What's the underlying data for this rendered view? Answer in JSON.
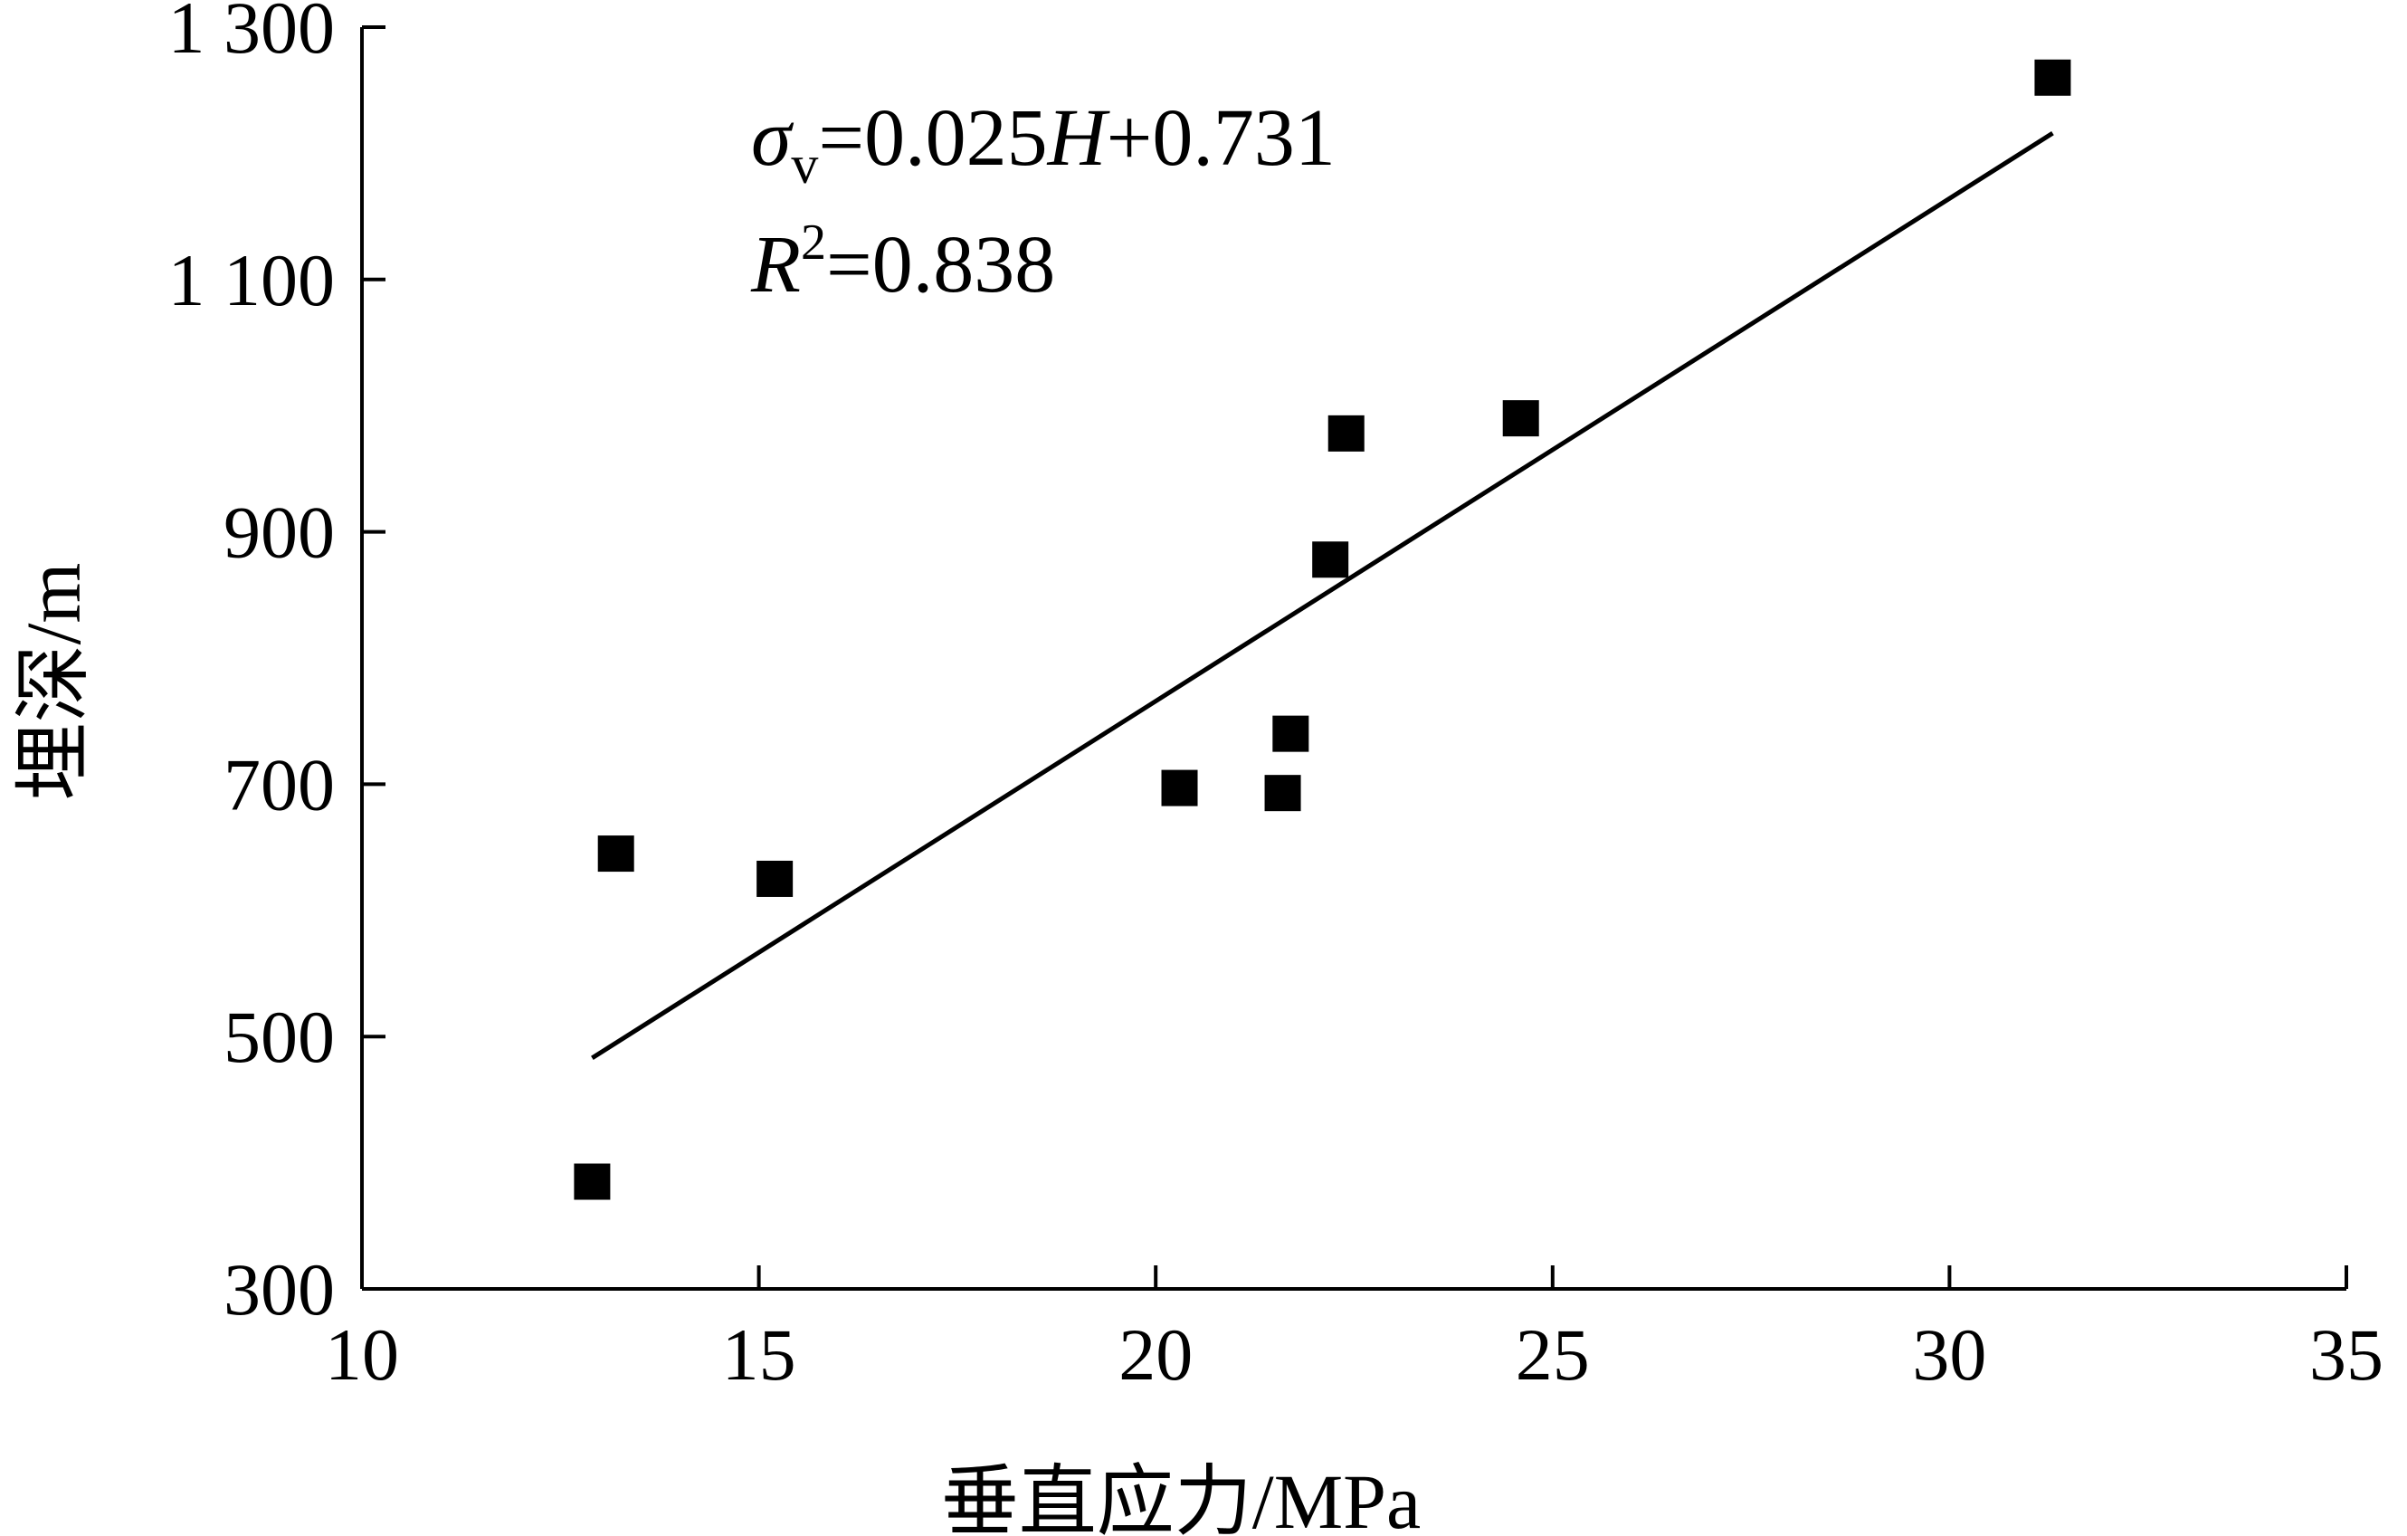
{
  "chart_data": {
    "type": "scatter",
    "xlabel": "垂直应力/MPa",
    "ylabel": "埋深/m",
    "xlim": [
      10,
      35
    ],
    "ylim": [
      300,
      1300
    ],
    "x_ticks": [
      10,
      15,
      20,
      25,
      30,
      35
    ],
    "x_tick_labels": [
      "10",
      "15",
      "20",
      "25",
      "30",
      "35"
    ],
    "y_ticks": [
      300,
      500,
      700,
      900,
      1100,
      1300
    ],
    "y_tick_labels": [
      "300",
      "500",
      "700",
      "900",
      "1 100",
      "1 300"
    ],
    "grid": false,
    "points": [
      {
        "x": 12.9,
        "y": 385
      },
      {
        "x": 13.2,
        "y": 645
      },
      {
        "x": 15.2,
        "y": 625
      },
      {
        "x": 20.3,
        "y": 697
      },
      {
        "x": 21.6,
        "y": 693
      },
      {
        "x": 21.7,
        "y": 740
      },
      {
        "x": 22.2,
        "y": 878
      },
      {
        "x": 22.4,
        "y": 978
      },
      {
        "x": 24.6,
        "y": 990
      },
      {
        "x": 31.3,
        "y": 1260
      }
    ],
    "fit_line": {
      "x": [
        12.9,
        31.3
      ],
      "y": [
        483,
        1216
      ]
    },
    "equation": {
      "sigma": "σ",
      "subscript": "v",
      "formula_a": "=0.025",
      "var_h": "H",
      "formula_b": "+0.731"
    },
    "r_squared": {
      "var_r": "R",
      "superscript": "2",
      "value": "=0.838"
    }
  }
}
